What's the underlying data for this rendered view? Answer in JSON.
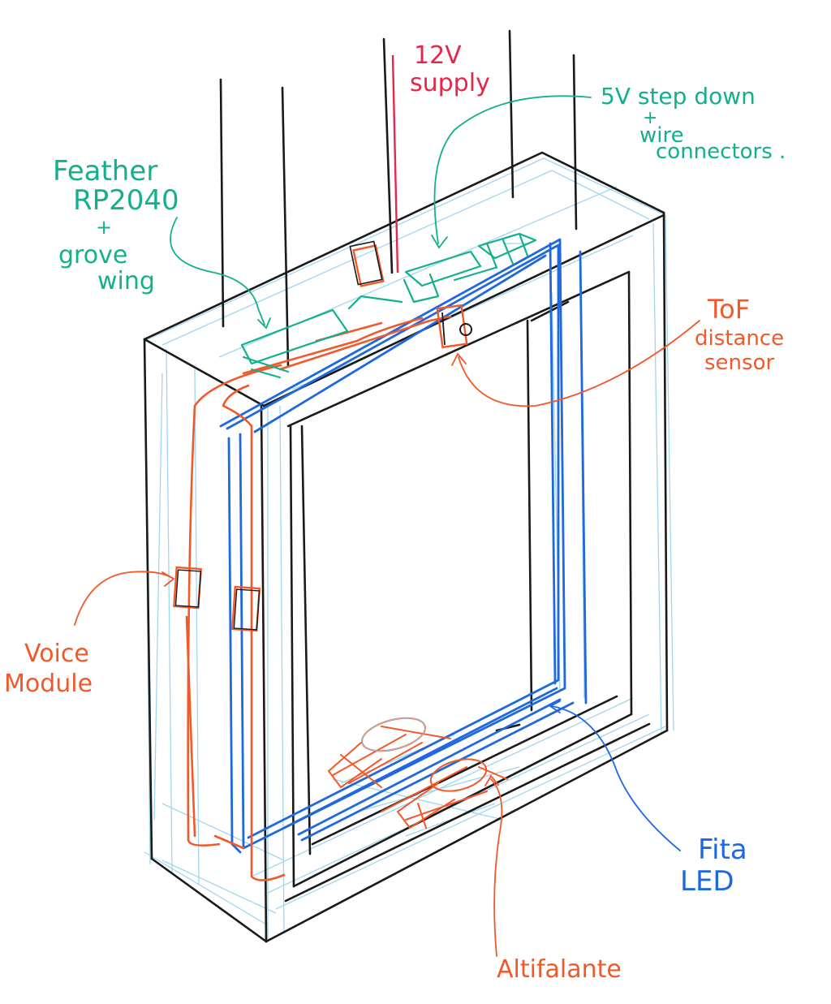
{
  "colors": {
    "outline": "#1a1a1a",
    "construction": "#8fd0ec",
    "blue_led": "#1f68e0",
    "orange_wire": "#f2592a",
    "green_label": "#13b08e",
    "red_label": "#e5274a"
  },
  "labels": {
    "feather": {
      "line1": "Feather",
      "line2": "RP2040",
      "line3": "+",
      "line4": "grove",
      "line5": "wing"
    },
    "supply": {
      "line1": "12V",
      "line2": "supply"
    },
    "stepdown": {
      "line1": "5V step down",
      "line2": "+",
      "line3": "wire",
      "line4": "connectors ."
    },
    "tof": {
      "line1": "ToF",
      "line2": "distance",
      "line3": "sensor"
    },
    "voice": {
      "line1": "Voice",
      "line2": "Module"
    },
    "fita": {
      "line1": "Fita",
      "line2": "LED"
    },
    "altifalante": {
      "line1": "Altifalante"
    }
  },
  "icons": [
    "speaker-icon",
    "speaker-icon"
  ]
}
